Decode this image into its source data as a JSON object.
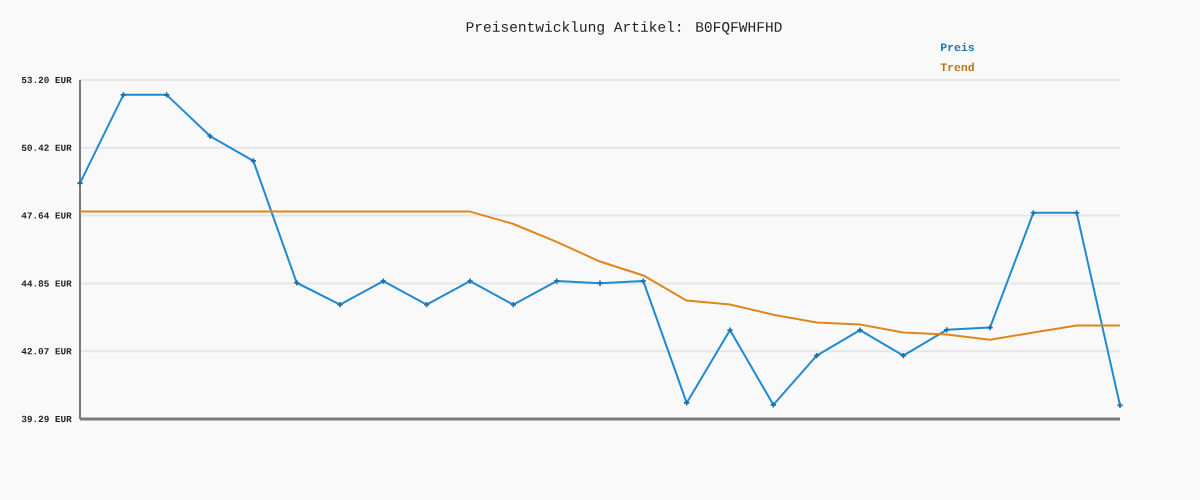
{
  "chart_data": {
    "type": "line",
    "title": "Preisentwicklung Artikel: B0FQFWHFHD",
    "categories": [
      null,
      null,
      null,
      null,
      null,
      null,
      null,
      null,
      null,
      null,
      null,
      null,
      null,
      null,
      null,
      null,
      null,
      null,
      null,
      null,
      null,
      null,
      null,
      null,
      null
    ],
    "series": [
      {
        "name": "Preis",
        "color": "#1f8ad2",
        "marker": "cross",
        "values": [
          48.97,
          52.59,
          52.59,
          50.9,
          49.88,
          44.88,
          43.98,
          44.95,
          43.98,
          44.95,
          43.98,
          44.95,
          44.86,
          44.95,
          39.95,
          42.94,
          39.87,
          41.89,
          42.94,
          41.89,
          42.95,
          43.04,
          47.75,
          47.75,
          39.85
        ]
      },
      {
        "name": "Trend",
        "color": "#e0861a",
        "marker": "none",
        "values": [
          47.8,
          47.8,
          47.8,
          47.8,
          47.8,
          47.8,
          47.8,
          47.8,
          47.8,
          47.8,
          47.29,
          46.56,
          45.75,
          45.18,
          44.15,
          43.99,
          43.57,
          43.25,
          43.17,
          42.84,
          42.76,
          42.54,
          42.84,
          43.13,
          43.13
        ]
      }
    ],
    "ylim": [
      39.29,
      53.2
    ],
    "yticks": [
      {
        "value": 39.29,
        "label": "39.29 EUR"
      },
      {
        "value": 42.07,
        "label": "42.07 EUR"
      },
      {
        "value": 44.85,
        "label": "44.85 EUR"
      },
      {
        "value": 47.64,
        "label": "47.64 EUR"
      },
      {
        "value": 50.42,
        "label": "50.42 EUR"
      },
      {
        "value": 53.2,
        "label": "53.20 EUR"
      }
    ],
    "grid": "y",
    "legend": "top right"
  }
}
